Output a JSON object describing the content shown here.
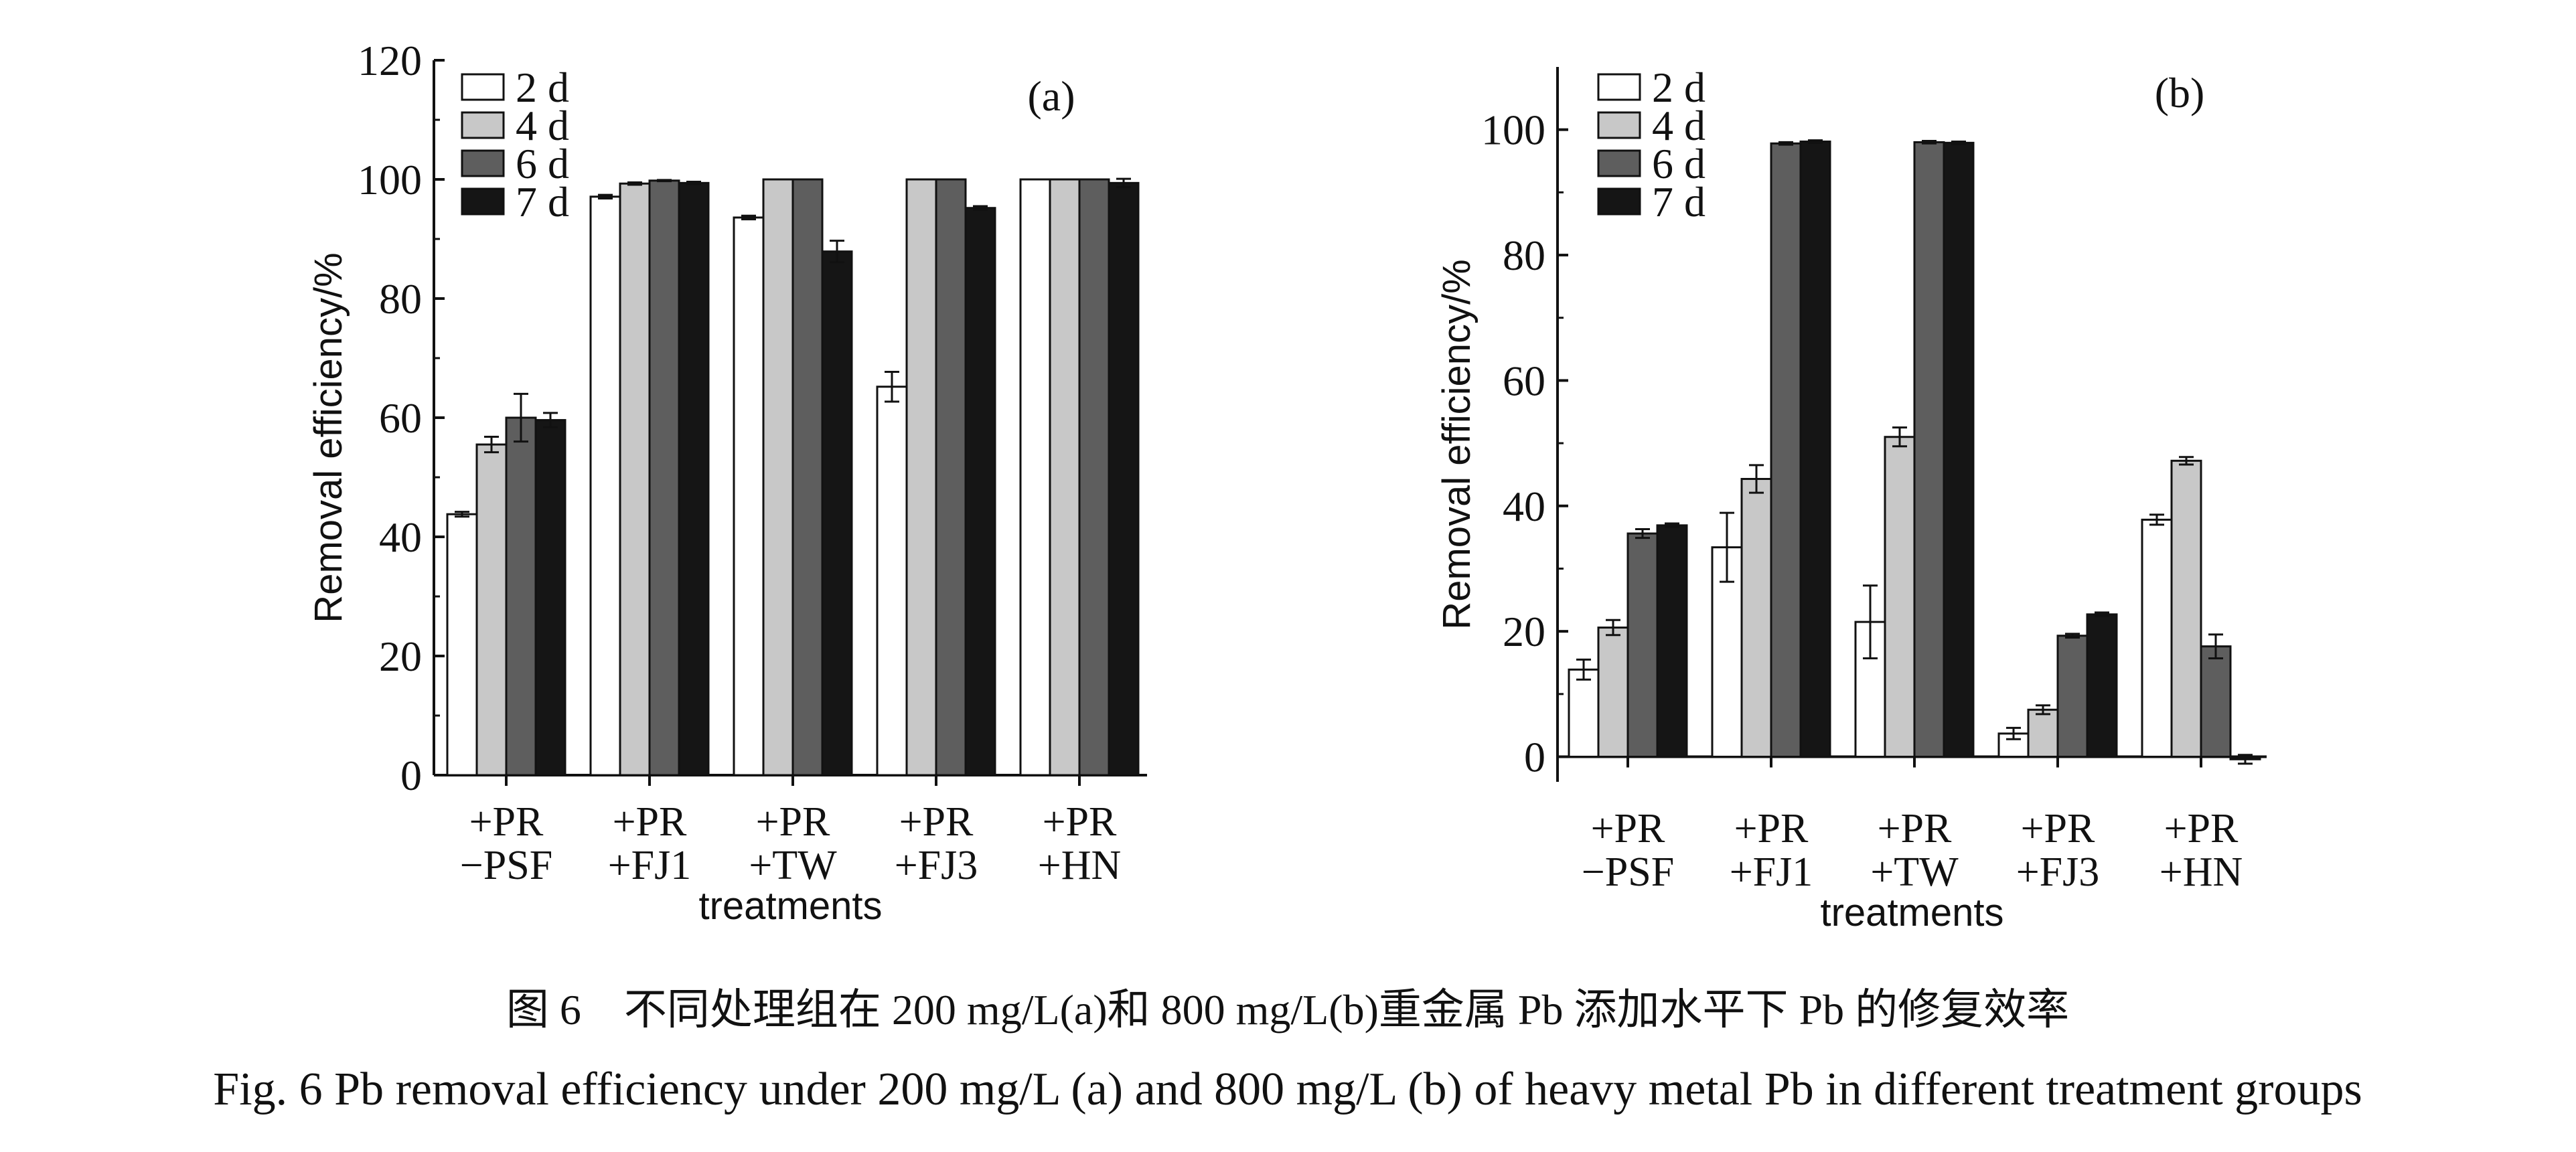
{
  "chart_data": [
    {
      "type": "bar",
      "panel_label": "(a)",
      "xlabel": "treatments",
      "ylabel": "Removal efficiency/%",
      "ylim": [
        0,
        120
      ],
      "yticks": [
        "0",
        "20",
        "40",
        "60",
        "80",
        "100",
        "120"
      ],
      "categories": [
        [
          "+PR",
          "−PSF"
        ],
        [
          "+PR",
          "+FJ1"
        ],
        [
          "+PR",
          "+TW"
        ],
        [
          "+PR",
          "+FJ3"
        ],
        [
          "+PR",
          "+HN"
        ]
      ],
      "series": [
        {
          "name": "2 d",
          "values": [
            43.8,
            97.1,
            93.6,
            65.2,
            100
          ],
          "errors": [
            0.4,
            0.3,
            0.3,
            2.5,
            0
          ]
        },
        {
          "name": "4 d",
          "values": [
            55.5,
            99.3,
            100,
            100,
            100
          ],
          "errors": [
            1.3,
            0.2,
            0,
            0,
            0
          ]
        },
        {
          "name": "6 d",
          "values": [
            60.0,
            99.8,
            100,
            100,
            100
          ],
          "errors": [
            4.0,
            0.1,
            0,
            0,
            0
          ]
        },
        {
          "name": "7 d",
          "values": [
            59.6,
            99.4,
            87.9,
            95.2,
            99.4
          ],
          "errors": [
            1.2,
            0.2,
            1.8,
            0.3,
            0.7
          ]
        }
      ],
      "legend_position": "top-left",
      "grid": false
    },
    {
      "type": "bar",
      "panel_label": "(b)",
      "xlabel": "treatments",
      "ylabel": "Removal efficiency/%",
      "ylim": [
        -4,
        110
      ],
      "yticks": [
        "0",
        "20",
        "40",
        "60",
        "80",
        "100"
      ],
      "categories": [
        [
          "+PR",
          "−PSF"
        ],
        [
          "+PR",
          "+FJ1"
        ],
        [
          "+PR",
          "+TW"
        ],
        [
          "+PR",
          "+FJ3"
        ],
        [
          "+PR",
          "+HN"
        ]
      ],
      "series": [
        {
          "name": "2 d",
          "values": [
            13.9,
            33.4,
            21.5,
            3.7,
            37.8
          ],
          "errors": [
            1.6,
            5.5,
            5.8,
            0.9,
            0.8
          ]
        },
        {
          "name": "4 d",
          "values": [
            20.6,
            44.3,
            51.0,
            7.5,
            47.2
          ],
          "errors": [
            1.2,
            2.2,
            1.5,
            0.7,
            0.6
          ]
        },
        {
          "name": "6 d",
          "values": [
            35.6,
            97.8,
            98.0,
            19.3,
            17.6
          ],
          "errors": [
            0.7,
            0.2,
            0.2,
            0.3,
            1.9
          ]
        },
        {
          "name": "7 d",
          "values": [
            36.9,
            98.1,
            97.9,
            22.7,
            -0.4
          ],
          "errors": [
            0.3,
            0.2,
            0.2,
            0.3,
            0.7
          ]
        }
      ],
      "legend_position": "top-left",
      "grid": false
    }
  ],
  "colors": {
    "series": [
      "#ffffff",
      "#c8c8c8",
      "#5e5e5e",
      "#151515"
    ],
    "ink": "#111111"
  },
  "caption": {
    "cn": "图 6　不同处理组在 200 mg/L(a)和 800 mg/L(b)重金属 Pb 添加水平下 Pb 的修复效率",
    "en": "Fig. 6  Pb removal efficiency under 200 mg/L (a) and 800 mg/L (b) of heavy metal Pb in different treatment groups"
  }
}
